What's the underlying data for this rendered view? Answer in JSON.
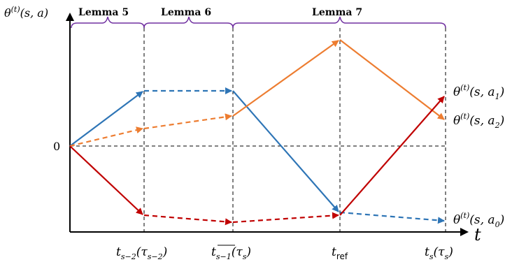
{
  "axes": {
    "y_label": "θ(t)(s, a)",
    "x_label": "t",
    "zero_label": "0"
  },
  "lemmas": [
    {
      "label": "Lemma 5",
      "color": "#7030A0"
    },
    {
      "label": "Lemma 6",
      "color": "#7030A0"
    },
    {
      "label": "Lemma 7",
      "color": "#7030A0"
    }
  ],
  "x_ticks": [
    {
      "main": "t",
      "sub": "s−2",
      "paren": "(τ",
      "psub": "s−2",
      "close": ")"
    },
    {
      "main": "t",
      "sub": "s−1",
      "paren": "(τ",
      "psub": "s",
      "close": ")"
    },
    {
      "main": "t",
      "sub": "ref",
      "paren": "",
      "psub": "",
      "close": ""
    },
    {
      "main": "t",
      "sub": "s",
      "paren": "(τ",
      "psub": "s",
      "close": ")"
    }
  ],
  "series": [
    {
      "name": "θ(t)(s, a1)",
      "sup": "(t)",
      "args": "(s, a",
      "sub": "1",
      "close": ")",
      "color": "#C00000"
    },
    {
      "name": "θ(t)(s, a2)",
      "sup": "(t)",
      "args": "(s, a",
      "sub": "2",
      "close": ")",
      "color": "#ED7D31"
    },
    {
      "name": "θ(t)(s, a0)",
      "sup": "(t)",
      "args": "(s, a",
      "sub": "0",
      "close": ")",
      "color": "#2E75B6"
    }
  ]
}
